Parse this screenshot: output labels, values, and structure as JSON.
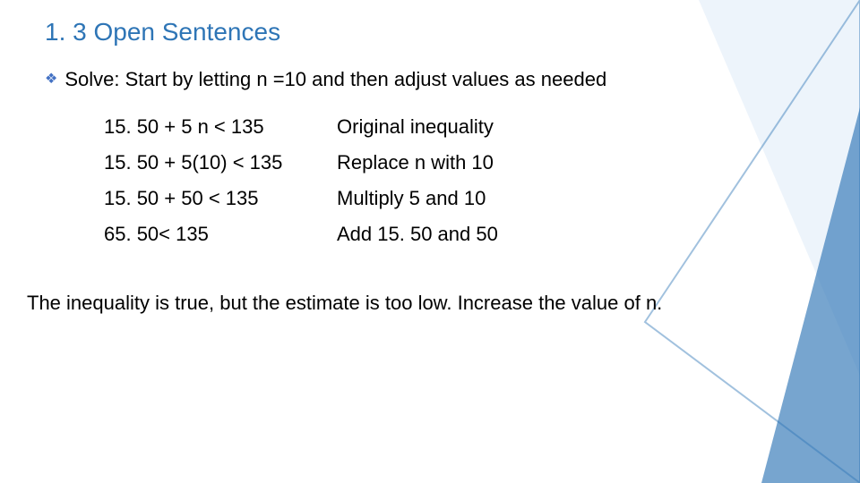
{
  "title": "1. 3 Open Sentences",
  "bullet": {
    "label": "Solve:",
    "text": "Start by letting n =10 and then adjust values as needed"
  },
  "steps": [
    {
      "expr": "15. 50 + 5 n < 135",
      "desc": "Original inequality"
    },
    {
      "expr": "15. 50 + 5(10) < 135",
      "desc": "Replace n with 10"
    },
    {
      "expr": "15. 50 + 50 < 135",
      "desc": "Multiply 5 and 10"
    },
    {
      "expr": " 65. 50< 135",
      "desc": "Add 15. 50 and 50"
    }
  ],
  "conclusion": "The inequality is true, but the estimate is too low. Increase the value of n.",
  "style": {
    "title_color": "#2e75b6",
    "title_fontsize": 28,
    "bullet_color": "#4472c4",
    "body_color": "#000000",
    "body_fontsize": 22,
    "background": "#ffffff",
    "shape1_fill": "#deebf7",
    "shape1_fill_opacity": 0.55,
    "shape2_stroke": "#2e75b6",
    "shape2_stroke_opacity": 0.45,
    "shape2_stroke_width": 2,
    "shape3_fill": "#2e75b6",
    "shape3_fill_opacity": 0.65
  }
}
